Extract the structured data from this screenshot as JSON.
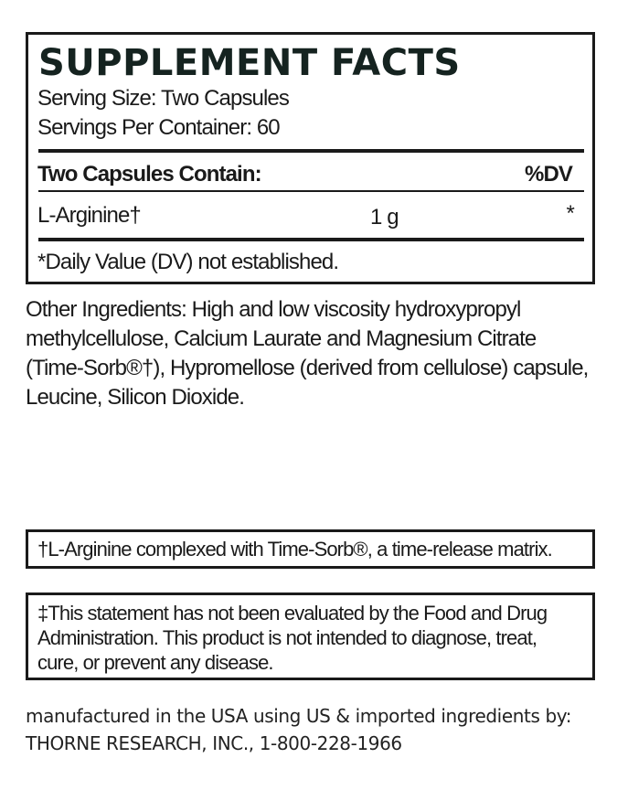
{
  "facts": {
    "title": "SUPPLEMENT FACTS",
    "serving_size": "Serving Size: Two Capsules",
    "servings_per_container": "Servings Per Container: 60",
    "header_label": "Two Capsules Contain:",
    "header_dv": "%DV",
    "rows": [
      {
        "name": "L-Arginine†",
        "amount": "1 g",
        "dv": "*"
      }
    ],
    "footnote": "*Daily Value (DV) not established."
  },
  "other_ingredients": "Other Ingredients: High and low viscosity hydroxypropyl methylcellulose, Calcium Laurate and Magnesium Citrate (Time-Sorb®†), Hypromellose (derived from cellulose) capsule, Leucine, Silicon Dioxide.",
  "dagger_note": "†L-Arginine complexed with Time-Sorb®, a time-release matrix.",
  "fda_statement": "‡This statement has not been evaluated by the Food and Drug Administration. This product is not intended to diagnose, treat, cure, or prevent any disease.",
  "manufacturer": {
    "line1": "manufactured in the USA using US & imported ingredients by:",
    "line2": "THORNE RESEARCH, INC., 1-800-228-1966"
  }
}
